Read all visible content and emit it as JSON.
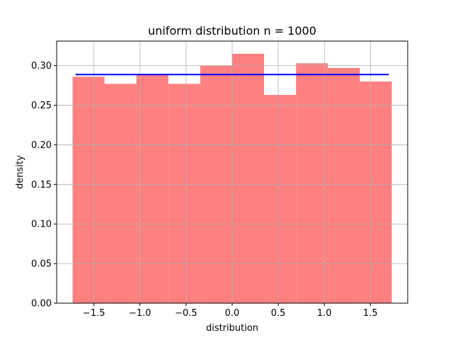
{
  "chart_data": {
    "type": "bar",
    "title": "uniform distribution n = 1000",
    "xlabel": "distribution",
    "ylabel": "density",
    "xlim": [
      -1.905,
      1.905
    ],
    "ylim": [
      0,
      0.331
    ],
    "xticks": [
      -1.5,
      -1.0,
      -0.5,
      0.0,
      0.5,
      1.0,
      1.5
    ],
    "xtick_labels": [
      "−1.5",
      "−1.0",
      "−0.5",
      "0.0",
      "0.5",
      "1.0",
      "1.5"
    ],
    "yticks": [
      0.0,
      0.05,
      0.1,
      0.15,
      0.2,
      0.25,
      0.3
    ],
    "ytick_labels": [
      "0.00",
      "0.05",
      "0.10",
      "0.15",
      "0.20",
      "0.25",
      "0.30"
    ],
    "grid": true,
    "bin_edges": [
      -1.732,
      -1.386,
      -1.039,
      -0.693,
      -0.346,
      0.0,
      0.346,
      0.693,
      1.039,
      1.386,
      1.732
    ],
    "values": [
      0.286,
      0.277,
      0.289,
      0.277,
      0.3,
      0.315,
      0.263,
      0.303,
      0.297,
      0.28
    ],
    "bar_color": "#ff8080",
    "density_line": {
      "x": [
        -1.7,
        1.7
      ],
      "y": 0.2887,
      "color": "#0000ff"
    }
  }
}
